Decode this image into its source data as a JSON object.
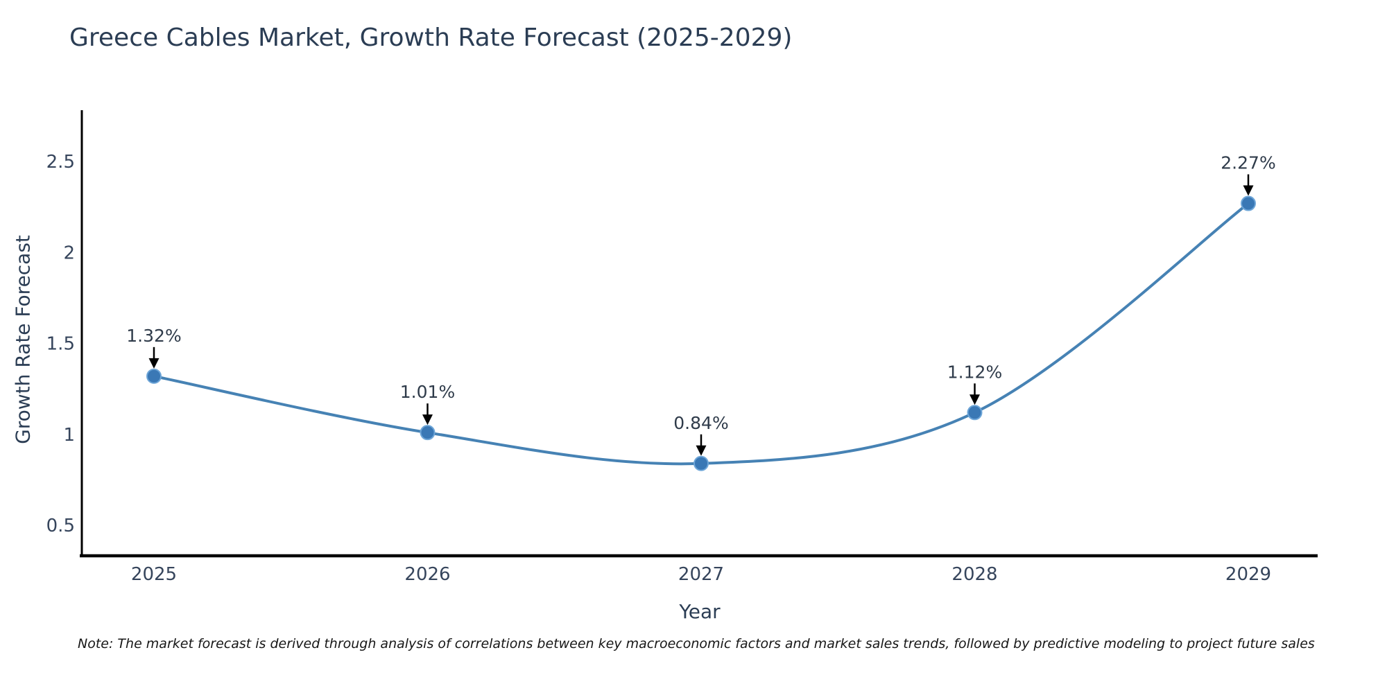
{
  "title": "Greece Cables Market, Growth Rate Forecast (2025-2029)",
  "note": "Note: The market forecast is derived through analysis of correlations between key macroeconomic factors and market sales trends, followed by predictive modeling to project future sales",
  "chart_data": {
    "type": "line",
    "title": "Greece Cables Market, Growth Rate Forecast (2025-2029)",
    "xlabel": "Year",
    "ylabel": "Growth Rate Forecast",
    "categories": [
      "2025",
      "2026",
      "2027",
      "2028",
      "2029"
    ],
    "values": [
      1.32,
      1.01,
      0.84,
      1.12,
      2.27
    ],
    "point_labels": [
      "1.32%",
      "1.01%",
      "0.84%",
      "1.12%",
      "2.27%"
    ],
    "yticks": [
      0.5,
      1,
      1.5,
      2,
      2.5
    ],
    "ylim": [
      0.33,
      2.78
    ],
    "grid": false,
    "legend": "none",
    "line_color": "#4682b4",
    "marker_color": "#3a78b5",
    "marker_edge_color": "#6ea6d8",
    "axis_color": "#000000",
    "annotation_arrow_color": "#000000"
  }
}
